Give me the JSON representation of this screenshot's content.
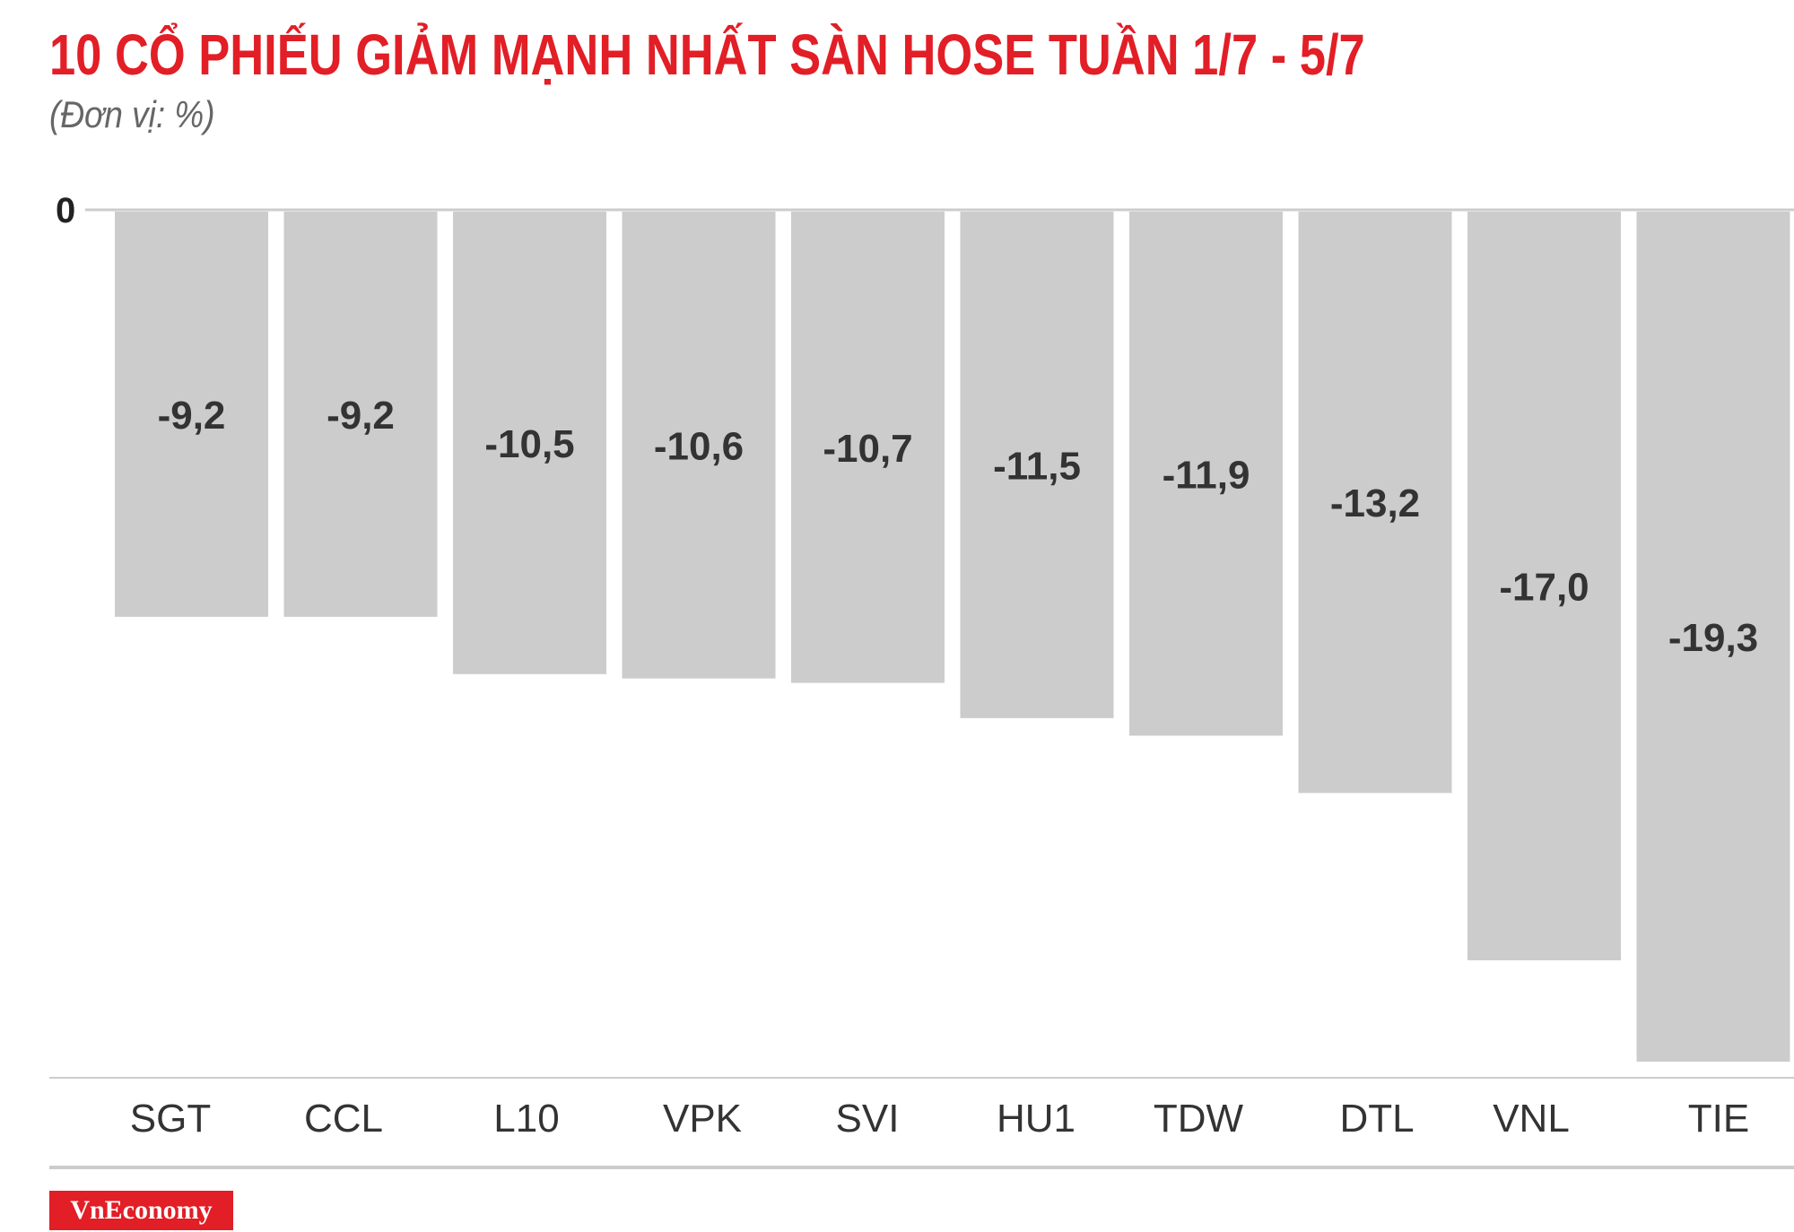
{
  "header": {
    "title": "10 CỔ PHIẾU GIẢM MẠNH NHẤT SÀN HOSE TUẦN 1/7 - 5/7",
    "unit": "(Đơn vị: %)"
  },
  "brand": {
    "logo_text": "VnEconomy",
    "color": "#e21e26"
  },
  "colors": {
    "bar": "#cccccc",
    "text": "#333333",
    "title": "#e21e26"
  },
  "chart_data": {
    "type": "bar",
    "categories": [
      "SGT",
      "CCL",
      "L10",
      "VPK",
      "SVI",
      "HU1",
      "TDW",
      "DTL",
      "VNL",
      "TIE"
    ],
    "values": [
      -9.2,
      -9.2,
      -10.5,
      -10.6,
      -10.7,
      -11.5,
      -11.9,
      -13.2,
      -17.0,
      -19.3
    ],
    "value_labels": [
      "-9,2",
      "-9,2",
      "-10,5",
      "-10,6",
      "-10,7",
      "-11,5",
      "-11,9",
      "-13,2",
      "-17,0",
      "-19,3"
    ],
    "zero_label": "0",
    "ylim": [
      -19.3,
      0
    ],
    "grid": false,
    "legend": "none"
  }
}
